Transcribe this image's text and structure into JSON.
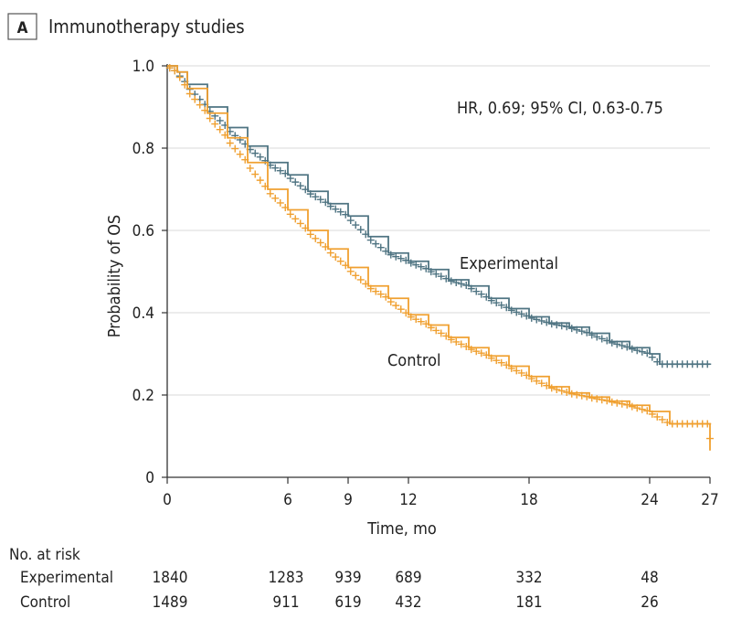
{
  "panel": {
    "letter": "A",
    "title": "Immunotherapy studies"
  },
  "chart_data": {
    "type": "line",
    "xlabel": "Time, mo",
    "ylabel": "Probability of OS",
    "xlim": [
      0,
      27
    ],
    "ylim": [
      0,
      1.0
    ],
    "x_ticks": [
      0,
      6,
      9,
      12,
      18,
      24,
      27
    ],
    "y_ticks": [
      0,
      0.2,
      0.4,
      0.6,
      0.8,
      1.0
    ],
    "y_tick_labels": [
      "0",
      "0.2",
      "0.4",
      "0.6",
      "0.8",
      "1.0"
    ],
    "annotation": "HR, 0.69; 95% CI, 0.63-0.75",
    "grid": true,
    "series": [
      {
        "name": "Experimental",
        "color": "#4f7482",
        "x": [
          0,
          0.5,
          1,
          2,
          3,
          4,
          5,
          6,
          7,
          8,
          9,
          10,
          11,
          12,
          13,
          14,
          15,
          16,
          17,
          18,
          19,
          20,
          21,
          22,
          23,
          24,
          24.5,
          25,
          26,
          27
        ],
        "y": [
          1.0,
          0.985,
          0.955,
          0.9,
          0.85,
          0.805,
          0.765,
          0.735,
          0.695,
          0.665,
          0.635,
          0.585,
          0.545,
          0.525,
          0.505,
          0.48,
          0.465,
          0.435,
          0.41,
          0.39,
          0.375,
          0.365,
          0.35,
          0.33,
          0.315,
          0.3,
          0.275,
          0.275,
          0.275,
          0.275
        ]
      },
      {
        "name": "Control",
        "color": "#f0a030",
        "x": [
          0,
          0.5,
          1,
          2,
          3,
          4,
          5,
          6,
          7,
          8,
          9,
          10,
          11,
          12,
          13,
          14,
          15,
          16,
          17,
          18,
          19,
          20,
          21,
          22,
          23,
          24,
          25,
          26,
          27,
          27
        ],
        "y": [
          1.0,
          0.985,
          0.945,
          0.885,
          0.825,
          0.765,
          0.7,
          0.65,
          0.6,
          0.555,
          0.51,
          0.465,
          0.435,
          0.395,
          0.37,
          0.34,
          0.315,
          0.295,
          0.27,
          0.245,
          0.22,
          0.205,
          0.195,
          0.185,
          0.175,
          0.16,
          0.13,
          0.13,
          0.13,
          0.065
        ]
      }
    ]
  },
  "risk_table": {
    "title": "No. at risk",
    "times": [
      0,
      6,
      9,
      12,
      18,
      24
    ],
    "rows": [
      {
        "label": "Experimental",
        "values": [
          "1840",
          "1283",
          "939",
          "689",
          "332",
          "48"
        ]
      },
      {
        "label": "Control",
        "values": [
          "1489",
          "911",
          "619",
          "432",
          "181",
          "26"
        ]
      }
    ]
  }
}
